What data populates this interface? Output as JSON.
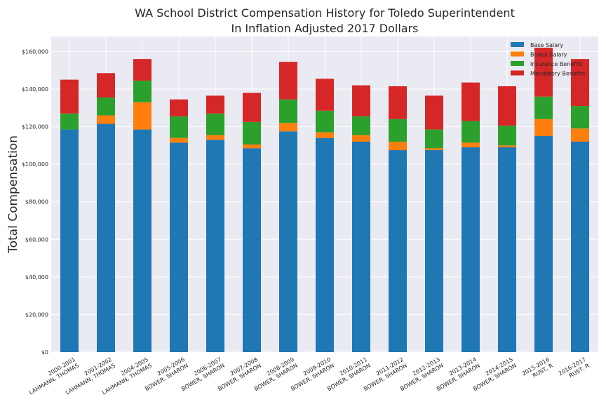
{
  "chart_data": {
    "type": "bar",
    "stacked": true,
    "title": "WA School District Compensation History for Toledo Superintendent",
    "subtitle": "In Inflation Adjusted 2017 Dollars",
    "xlabel": "",
    "ylabel": "Total Compensation",
    "ylim": [
      0,
      168000
    ],
    "yticks": [
      0,
      20000,
      40000,
      60000,
      80000,
      100000,
      120000,
      140000,
      160000
    ],
    "ytick_labels": [
      "$0",
      "$20,000",
      "$40,000",
      "$60,000",
      "$80,000",
      "$100,000",
      "$120,000",
      "$140,000",
      "$160,000"
    ],
    "grid": true,
    "legend_position": "top-right",
    "categories": [
      [
        "2000-2001",
        "LAHMANN, THOMAS"
      ],
      [
        "2001-2002",
        "LAHMANN, THOMAS"
      ],
      [
        "2004-2005",
        "LAHMANN, THOMAS"
      ],
      [
        "2005-2006",
        "BOWER, SHARON"
      ],
      [
        "2006-2007",
        "BOWER, SHARON"
      ],
      [
        "2007-2008",
        "BOWER, SHARON"
      ],
      [
        "2008-2009",
        "BOWER, SHARON"
      ],
      [
        "2009-2010",
        "BOWER, SHARON"
      ],
      [
        "2010-2011",
        "BOWER, SHARON"
      ],
      [
        "2011-2012",
        "BOWER, SHARON"
      ],
      [
        "2012-2013",
        "BOWER, SHARON"
      ],
      [
        "2013-2014",
        "BOWER, SHARON"
      ],
      [
        "2014-2015",
        "BOWER, SHARON"
      ],
      [
        "2015-2016",
        "RUST, R"
      ],
      [
        "2016-2017",
        "RUST, R"
      ]
    ],
    "series": [
      {
        "name": "Base Salary",
        "color": "#1f77b4",
        "values": [
          118500,
          121500,
          118500,
          111500,
          113000,
          108500,
          117500,
          114000,
          112000,
          107500,
          107500,
          109000,
          109000,
          115000,
          112000
        ]
      },
      {
        "name": "Bonus Salary",
        "color": "#ff7f0e",
        "values": [
          0,
          4500,
          14500,
          2500,
          2500,
          2000,
          4500,
          3000,
          3500,
          4500,
          1000,
          2500,
          1000,
          9000,
          7000
        ]
      },
      {
        "name": "Insurance Benefits",
        "color": "#2ca02c",
        "values": [
          8500,
          9500,
          11500,
          11500,
          11500,
          12000,
          12500,
          11500,
          10000,
          12000,
          10000,
          11500,
          10500,
          12000,
          12000
        ]
      },
      {
        "name": "Mandatory Benefits",
        "color": "#d62728",
        "values": [
          18000,
          13000,
          11500,
          9000,
          9500,
          15500,
          20000,
          17000,
          16500,
          17500,
          18000,
          20500,
          21000,
          26000,
          25000
        ]
      }
    ]
  }
}
